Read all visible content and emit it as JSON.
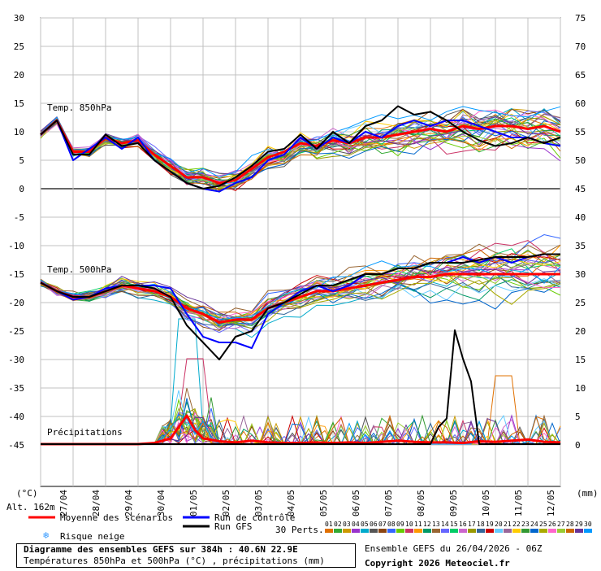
{
  "chart_data": {
    "type": "line",
    "title": "Diagramme des ensembles GEFS sur 384h : 40.6N 22.9E",
    "subtitle": "Températures 850hPa et 500hPa (°C) , précipitations (mm)",
    "run_info": "Ensemble GEFS du 26/04/2026 - 06Z",
    "copyright": "Copyright 2026 Meteociel.fr",
    "altitude": "Alt. 162m",
    "unit_left": "(°C)",
    "unit_right": "(mm)",
    "left_ticks": [
      30,
      25,
      20,
      15,
      10,
      5,
      0,
      -5,
      -10,
      -15,
      -20,
      -25,
      -30,
      -35,
      -40,
      -45
    ],
    "right_ticks": [
      75,
      70,
      65,
      60,
      55,
      50,
      45,
      40,
      35,
      30,
      25,
      20,
      15,
      10,
      5,
      0
    ],
    "x_labels": [
      "27/04",
      "28/04",
      "29/04",
      "30/04",
      "01/05",
      "02/05",
      "03/05",
      "04/05",
      "05/05",
      "06/05",
      "07/05",
      "08/05",
      "09/05",
      "10/05",
      "11/05",
      "12/05"
    ],
    "panel_labels": {
      "t850": "Temp. 850hPa",
      "t500": "Temp. 500hPa",
      "precip": "Précipitations"
    },
    "legend": {
      "mean": "Moyenne des scénarios",
      "control": "Run de contrôle",
      "gfs": "Run GFS",
      "snow": "Risque neige",
      "perts_label": "30 Perts.",
      "pert_numbers": [
        "01",
        "02",
        "03",
        "04",
        "05",
        "06",
        "07",
        "08",
        "09",
        "10",
        "11",
        "12",
        "13",
        "14",
        "15",
        "16",
        "17",
        "18",
        "19",
        "20",
        "21",
        "22",
        "23",
        "24",
        "25",
        "26",
        "27",
        "28",
        "29",
        "30"
      ]
    },
    "colors": {
      "mean": "#ff0000",
      "control": "#0000ff",
      "gfs": "#000000",
      "grid": "#c0c0c0",
      "members": [
        "#e07000",
        "#33aa33",
        "#cc9900",
        "#9933cc",
        "#00aacc",
        "#555555",
        "#8b4513",
        "#3366ff",
        "#66cc00",
        "#cc3366",
        "#ff9900",
        "#009966",
        "#996633",
        "#6666ff",
        "#00cc66",
        "#cc66cc",
        "#999900",
        "#336699",
        "#cc0000",
        "#66ccff",
        "#996699",
        "#ffcc00",
        "#339933",
        "#0066cc",
        "#aaaa00",
        "#ff66cc",
        "#99cc33",
        "#cc6600",
        "#663399",
        "#0099ff"
      ]
    },
    "series": [
      {
        "name": "Moyenne des scénarios",
        "panel": "t850",
        "x": [
          0,
          0.5,
          1,
          1.5,
          2,
          2.5,
          3,
          3.5,
          4,
          4.5,
          5,
          5.5,
          6,
          6.5,
          7,
          7.5,
          8,
          8.5,
          9,
          9.5,
          10,
          10.5,
          11,
          11.5,
          12,
          12.5,
          13,
          13.5,
          14,
          14.5,
          15,
          15.5,
          16
        ],
        "values": [
          9.5,
          12,
          6.5,
          6.5,
          9,
          8,
          8.5,
          6,
          4,
          2,
          2,
          1,
          1.5,
          3.5,
          5.5,
          6.5,
          8,
          7.5,
          8.5,
          8,
          9,
          9,
          9.5,
          10,
          10.5,
          10,
          11,
          10.5,
          11,
          11,
          10.5,
          11,
          10
        ]
      },
      {
        "name": "Run de contrôle",
        "panel": "t850",
        "x": [
          0,
          0.5,
          1,
          1.5,
          2,
          2.5,
          3,
          3.5,
          4,
          4.5,
          5,
          5.5,
          6,
          6.5,
          7,
          7.5,
          8,
          8.5,
          9,
          9.5,
          10,
          10.5,
          11,
          11.5,
          12,
          12.5,
          13,
          13.5,
          14,
          14.5,
          15,
          15.5,
          16
        ],
        "values": [
          9.5,
          12,
          5,
          7,
          9,
          7,
          9,
          5,
          3,
          1,
          0,
          -0.5,
          1,
          2,
          5,
          6,
          9,
          7,
          9,
          8,
          10,
          9,
          11,
          12,
          11,
          12,
          12,
          11,
          10,
          9,
          9,
          8,
          7.5
        ]
      },
      {
        "name": "Run GFS",
        "panel": "t850",
        "x": [
          0,
          0.5,
          1,
          1.5,
          2,
          2.5,
          3,
          3.5,
          4,
          4.5,
          5,
          5.5,
          6,
          6.5,
          7,
          7.5,
          8,
          8.5,
          9,
          9.5,
          10,
          10.5,
          11,
          11.5,
          12,
          12.5,
          13,
          13.5,
          14,
          14.5,
          15,
          15.5,
          16
        ],
        "values": [
          9.5,
          12,
          6,
          6,
          9.5,
          7.5,
          8,
          5,
          3,
          1,
          0,
          0.5,
          2,
          4,
          6.5,
          7,
          9.5,
          7,
          10,
          8,
          11,
          12,
          14.5,
          13,
          13.5,
          12,
          10,
          8.5,
          7.5,
          8,
          9,
          8,
          9
        ]
      },
      {
        "name": "Moyenne des scénarios",
        "panel": "t500",
        "x": [
          0,
          0.5,
          1,
          1.5,
          2,
          2.5,
          3,
          3.5,
          4,
          4.5,
          5,
          5.5,
          6,
          6.5,
          7,
          7.5,
          8,
          8.5,
          9,
          9.5,
          10,
          10.5,
          11,
          11.5,
          12,
          12.5,
          13,
          13.5,
          14,
          14.5,
          15,
          15.5,
          16
        ],
        "values": [
          -16.5,
          -18,
          -19,
          -19,
          -18,
          -17,
          -17.5,
          -18,
          -19,
          -21,
          -22,
          -23.5,
          -23,
          -23,
          -21,
          -20,
          -19,
          -18,
          -18,
          -17.5,
          -17,
          -16.5,
          -16,
          -15.5,
          -15.5,
          -15,
          -15,
          -15,
          -15,
          -15,
          -15,
          -15,
          -15
        ]
      },
      {
        "name": "Run de contrôle",
        "panel": "t500",
        "x": [
          0,
          0.5,
          1,
          1.5,
          2,
          2.5,
          3,
          3.5,
          4,
          4.5,
          5,
          5.5,
          6,
          6.5,
          7,
          7.5,
          8,
          8.5,
          9,
          9.5,
          10,
          10.5,
          11,
          11.5,
          12,
          12.5,
          13,
          13.5,
          14,
          14.5,
          15,
          15.5,
          16
        ],
        "values": [
          -16.5,
          -18,
          -19.5,
          -19,
          -17.5,
          -17,
          -17,
          -17,
          -17.5,
          -22,
          -26,
          -27,
          -27,
          -28,
          -22,
          -20,
          -18,
          -17,
          -18,
          -17,
          -15,
          -15,
          -14,
          -14,
          -13,
          -13,
          -12,
          -13,
          -12,
          -13,
          -12,
          -11.5,
          -11.5
        ]
      },
      {
        "name": "Run GFS",
        "panel": "t500",
        "x": [
          0,
          0.5,
          1,
          1.5,
          2,
          2.5,
          3,
          3.5,
          4,
          4.5,
          5,
          5.5,
          6,
          6.5,
          7,
          7.5,
          8,
          8.5,
          9,
          9.5,
          10,
          10.5,
          11,
          11.5,
          12,
          12.5,
          13,
          13.5,
          14,
          14.5,
          15,
          15.5,
          16
        ],
        "values": [
          -16.5,
          -18,
          -19,
          -19,
          -18,
          -17,
          -17,
          -17.5,
          -19,
          -24,
          -27,
          -30,
          -26,
          -25,
          -21,
          -20,
          -18.5,
          -17,
          -17,
          -16,
          -15,
          -15,
          -14,
          -14,
          -13,
          -13,
          -13,
          -12.5,
          -12,
          -12,
          -12,
          -11.5,
          -11.5
        ]
      },
      {
        "name": "Moyenne des scénarios",
        "panel": "precip",
        "x": [
          0,
          0.5,
          1,
          1.5,
          2,
          2.5,
          3,
          3.5,
          4,
          4.25,
          4.5,
          4.75,
          5,
          5.5,
          6,
          6.5,
          7,
          7.5,
          8,
          8.5,
          9,
          9.5,
          10,
          10.5,
          11,
          11.5,
          12,
          12.5,
          13,
          13.5,
          14,
          14.5,
          15,
          15.5,
          16
        ],
        "values": [
          0,
          0,
          0,
          0,
          0,
          0,
          0,
          0.2,
          1,
          3,
          5,
          2.5,
          1,
          0.5,
          0.3,
          0.6,
          0.3,
          0.2,
          0.2,
          0.3,
          0.2,
          0.3,
          0.2,
          0.4,
          0.6,
          0.4,
          0.3,
          0.3,
          0.2,
          0.5,
          0.4,
          0.6,
          0.8,
          0.4,
          0.3
        ]
      },
      {
        "name": "Run GFS",
        "panel": "precip",
        "x": [
          0,
          2,
          4,
          6,
          8,
          10,
          11,
          12,
          12.25,
          12.5,
          12.75,
          13,
          13.25,
          13.5,
          13.75,
          14,
          16
        ],
        "values": [
          0,
          0,
          0,
          0,
          0,
          0,
          0,
          0,
          3,
          4.5,
          20,
          15,
          11,
          0,
          0,
          0,
          0
        ]
      }
    ]
  }
}
